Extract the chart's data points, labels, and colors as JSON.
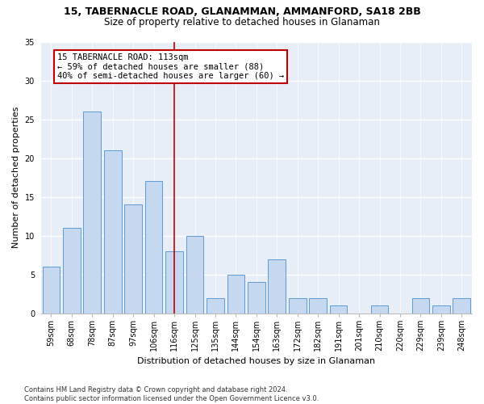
{
  "title1": "15, TABERNACLE ROAD, GLANAMMAN, AMMANFORD, SA18 2BB",
  "title2": "Size of property relative to detached houses in Glanaman",
  "xlabel": "Distribution of detached houses by size in Glanaman",
  "ylabel": "Number of detached properties",
  "categories": [
    "59sqm",
    "68sqm",
    "78sqm",
    "87sqm",
    "97sqm",
    "106sqm",
    "116sqm",
    "125sqm",
    "135sqm",
    "144sqm",
    "154sqm",
    "163sqm",
    "172sqm",
    "182sqm",
    "191sqm",
    "201sqm",
    "210sqm",
    "220sqm",
    "229sqm",
    "239sqm",
    "248sqm"
  ],
  "values": [
    6,
    11,
    26,
    21,
    14,
    17,
    8,
    10,
    2,
    5,
    4,
    7,
    2,
    2,
    1,
    0,
    1,
    0,
    2,
    1,
    2
  ],
  "bar_color": "#c5d8f0",
  "bar_edge_color": "#5b9bd5",
  "vline_x": 6,
  "vline_color": "#c00000",
  "annotation_text": "15 TABERNACLE ROAD: 113sqm\n← 59% of detached houses are smaller (88)\n40% of semi-detached houses are larger (60) →",
  "annotation_box_color": "white",
  "annotation_box_edge": "#c00000",
  "ylim": [
    0,
    35
  ],
  "yticks": [
    0,
    5,
    10,
    15,
    20,
    25,
    30,
    35
  ],
  "footnote": "Contains HM Land Registry data © Crown copyright and database right 2024.\nContains public sector information licensed under the Open Government Licence v3.0.",
  "bg_color": "#e8eef8",
  "grid_color": "white",
  "title1_fontsize": 9,
  "title2_fontsize": 8.5,
  "xlabel_fontsize": 8,
  "ylabel_fontsize": 8,
  "annot_fontsize": 7.5,
  "tick_fontsize": 7
}
